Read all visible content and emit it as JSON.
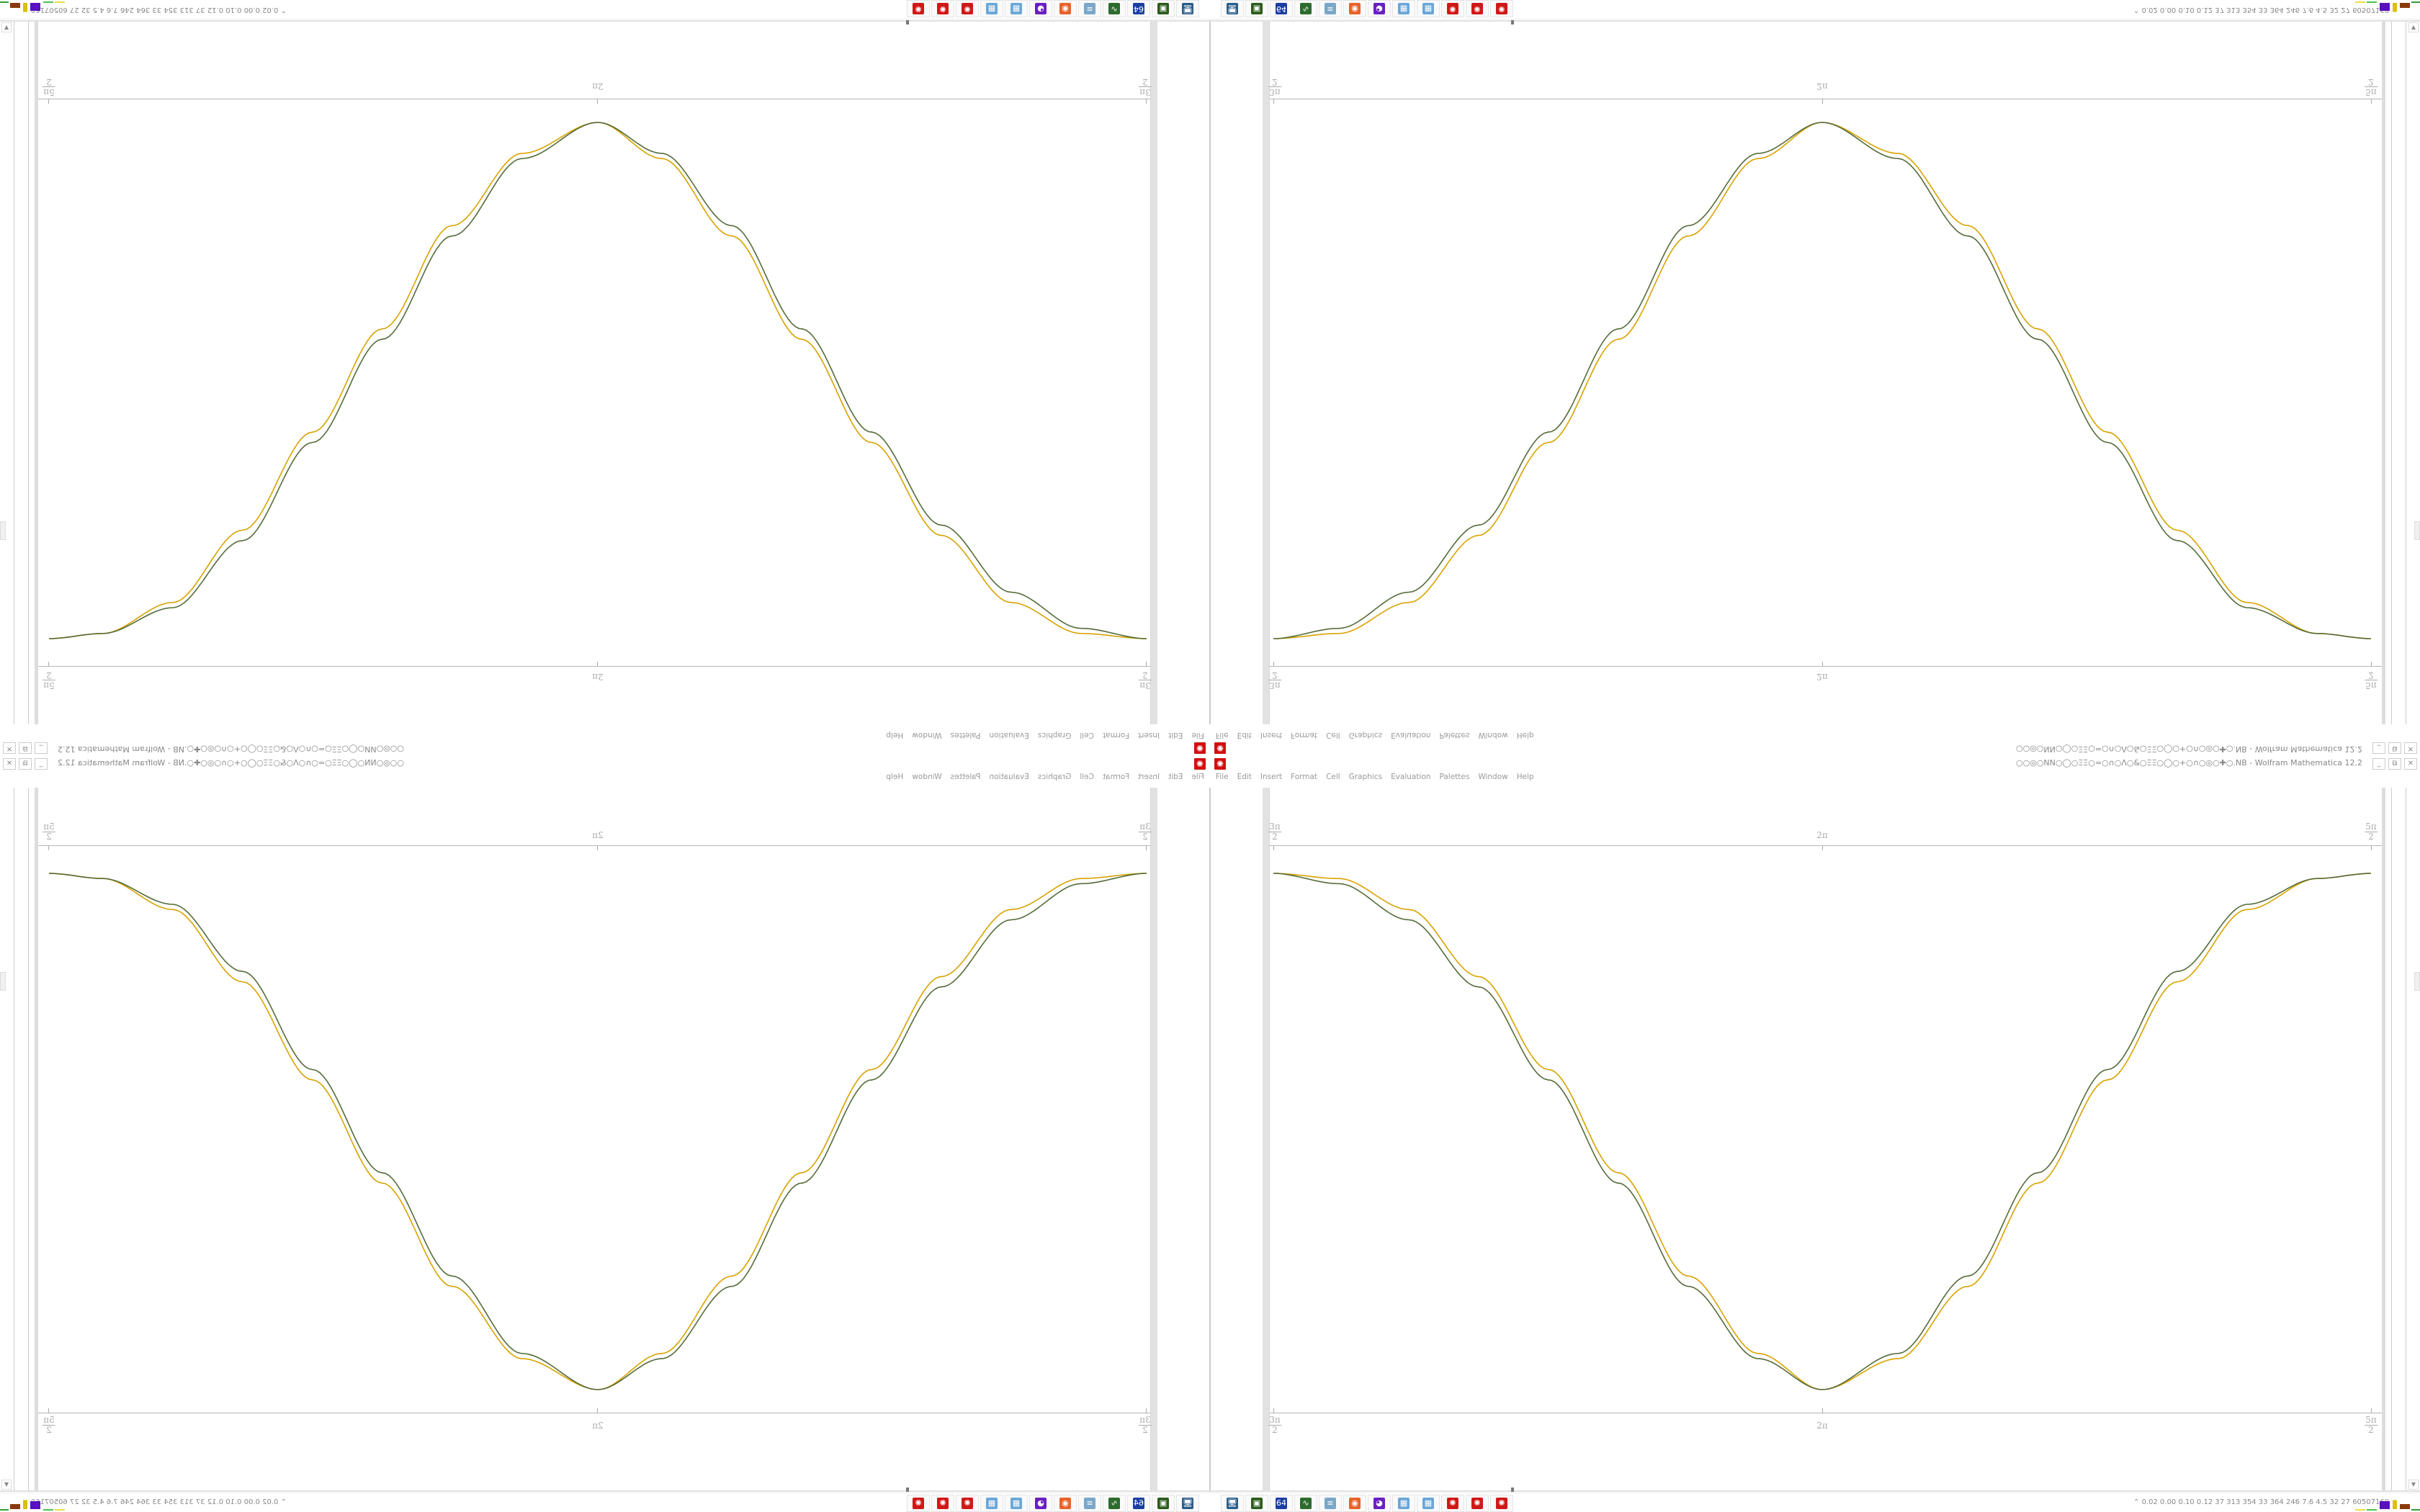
{
  "window": {
    "title": "○○◎○NN○◯○ΞΞ○=○∩○Λ○&○ΞΞ○◯○+○∩○◎○✚○.NB - Wolfram Mathematica 12.2",
    "controls": {
      "minimize": "_",
      "restore": "⧉",
      "close": "✕"
    }
  },
  "menu": [
    "File",
    "Edit",
    "Insert",
    "Format",
    "Cell",
    "Graphics",
    "Evaluation",
    "Palettes",
    "Window",
    "Help"
  ],
  "taskbar": {
    "icons": [
      {
        "name": "remote-desktop-icon",
        "glyph": "🖥",
        "color": "#2a5d8a"
      },
      {
        "name": "drive-icon",
        "glyph": "▣",
        "color": "#2b5c1b"
      },
      {
        "name": "floppy-64-icon",
        "glyph": "64",
        "color": "#1a3fa0"
      },
      {
        "name": "system-monitor-icon",
        "glyph": "∿",
        "color": "#2e6b2e"
      },
      {
        "name": "notepad-icon",
        "glyph": "≡",
        "color": "#7aa7c7"
      },
      {
        "name": "firefox-icon",
        "glyph": "◉",
        "color": "#e8632a"
      },
      {
        "name": "chat-icon",
        "glyph": "◕",
        "color": "#6a1fc4"
      },
      {
        "name": "calculator-icon",
        "glyph": "▦",
        "color": "#6aa6d8"
      },
      {
        "name": "calculator-icon",
        "glyph": "▦",
        "color": "#6aa6d8"
      },
      {
        "name": "mathematica-icon",
        "glyph": "✺",
        "color": "#d01818"
      },
      {
        "name": "mathematica-icon",
        "glyph": "✺",
        "color": "#d01818"
      },
      {
        "name": "mathematica-icon",
        "glyph": "✺",
        "color": "#d01818"
      }
    ],
    "status_chevron": "⌃",
    "status_text": "0.02 0.00 0.10 0.12  37  313  354  33  364  246  7.6  4.5  32  27  60507160"
  },
  "chart_data": {
    "type": "line",
    "title": "",
    "xlabel": "",
    "ylabel": "",
    "x_ticks": [
      {
        "num": "3π",
        "den": "2"
      },
      {
        "label": "2π"
      },
      {
        "num": "5π",
        "den": "2"
      }
    ],
    "xlim": [
      "3π/2",
      "5π/2"
    ],
    "grid": false,
    "series": [
      {
        "color": "#d8a200",
        "x": [
          4.712,
          4.9,
          5.1,
          5.3,
          5.5,
          5.7,
          5.9,
          6.1,
          6.283,
          6.5,
          6.7,
          6.9,
          7.1,
          7.3,
          7.5,
          7.7,
          7.854
        ],
        "y": [
          1,
          0.99,
          0.93,
          0.8,
          0.62,
          0.42,
          0.22,
          0.07,
          0,
          0.06,
          0.2,
          0.4,
          0.6,
          0.79,
          0.93,
          0.99,
          1
        ]
      },
      {
        "color": "#556b3a",
        "x": [
          4.712,
          4.9,
          5.1,
          5.3,
          5.5,
          5.7,
          5.9,
          6.1,
          6.283,
          6.5,
          6.7,
          6.9,
          7.1,
          7.3,
          7.5,
          7.7,
          7.854
        ],
        "y": [
          1,
          0.98,
          0.91,
          0.78,
          0.6,
          0.4,
          0.2,
          0.06,
          0,
          0.07,
          0.22,
          0.42,
          0.62,
          0.81,
          0.94,
          0.99,
          1
        ]
      }
    ]
  },
  "colors": {
    "accent": "#d01010",
    "curve1": "#d8a200",
    "curve2": "#556b3a"
  }
}
